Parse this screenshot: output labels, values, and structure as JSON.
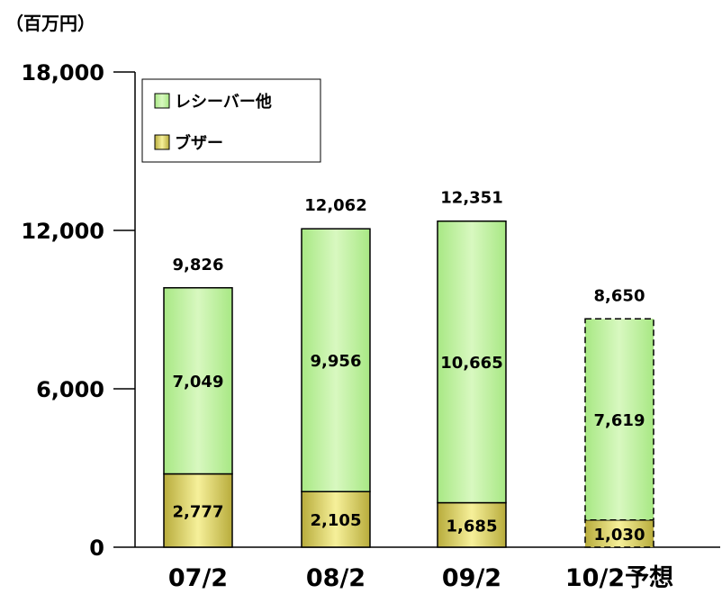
{
  "unit_label": "（百万円）",
  "chart_data": {
    "type": "bar",
    "stacked": true,
    "categories": [
      "07/2",
      "08/2",
      "09/2",
      "10/2予想"
    ],
    "series": [
      {
        "name": "ブザー",
        "values": [
          2777,
          2105,
          1685,
          1030
        ],
        "color": "#e8e27c"
      },
      {
        "name": "レシーバー他",
        "values": [
          7049,
          9956,
          10665,
          7619
        ],
        "color": "#b8ee9a"
      }
    ],
    "totals": [
      9826,
      12062,
      12351,
      8650
    ],
    "forecast": [
      false,
      false,
      false,
      true
    ],
    "ylim": [
      0,
      18000
    ],
    "yticks": [
      0,
      6000,
      12000,
      18000
    ],
    "ytick_labels": [
      "0",
      "6,000",
      "12,000",
      "18,000"
    ],
    "legend": {
      "placement": "top-left",
      "order": [
        "レシーバー他",
        "ブザー"
      ]
    },
    "grid": false,
    "xlabel": "",
    "ylabel": ""
  }
}
